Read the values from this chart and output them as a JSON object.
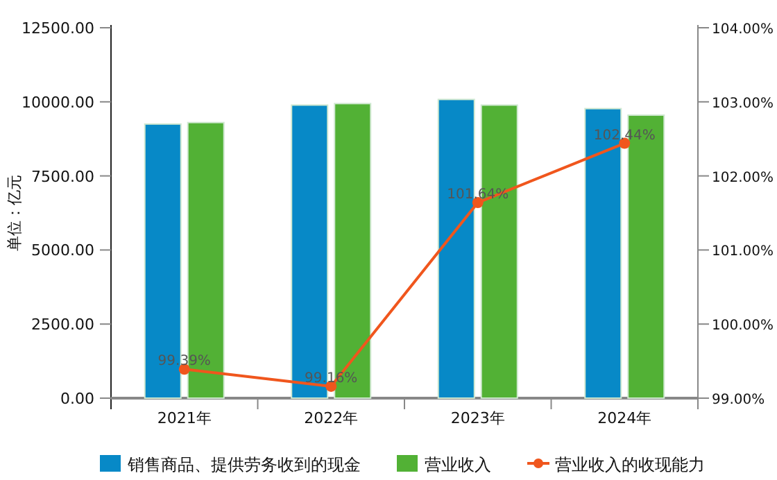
{
  "chart_data": {
    "type": "bar",
    "ylabel": "单位：亿元",
    "categories": [
      "2021年",
      "2022年",
      "2023年",
      "2024年"
    ],
    "series": [
      {
        "name": "销售商品、提供劳务收到的现金",
        "color": "#0789c7",
        "values": [
          9250,
          9890,
          10080,
          9770
        ]
      },
      {
        "name": "营业收入",
        "color": "#52b135",
        "values": [
          9300,
          9940,
          9890,
          9550
        ]
      },
      {
        "name": "营业收入的收现能力",
        "type": "line",
        "axis": "y2",
        "color": "#f0561d",
        "marker": "circle",
        "values": [
          99.39,
          99.16,
          101.64,
          102.44
        ],
        "value_labels": [
          "99.39%",
          "99.16%",
          "101.64%",
          "102.44%"
        ]
      }
    ],
    "ylim": [
      0,
      12500
    ],
    "yticks": [
      {
        "value": 0,
        "label": "0.00"
      },
      {
        "value": 2500,
        "label": "2500.00"
      },
      {
        "value": 5000,
        "label": "5000.00"
      },
      {
        "value": 7500,
        "label": "7500.00"
      },
      {
        "value": 10000,
        "label": "10000.00"
      },
      {
        "value": 12500,
        "label": "12500.00"
      }
    ],
    "y2lim": [
      99,
      104
    ],
    "y2ticks": [
      {
        "value": 99,
        "label": "99.00%"
      },
      {
        "value": 100,
        "label": "100.00%"
      },
      {
        "value": 101,
        "label": "101.00%"
      },
      {
        "value": 102,
        "label": "102.00%"
      },
      {
        "value": 103,
        "label": "103.00%"
      },
      {
        "value": 104,
        "label": "104.00%"
      }
    ],
    "legend": "bottom"
  }
}
